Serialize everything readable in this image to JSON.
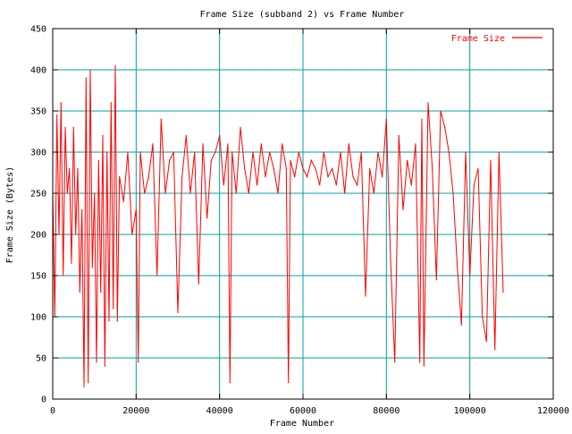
{
  "chart_data": {
    "type": "line",
    "title": "Frame Size (subband 2) vs Frame Number",
    "xlabel": "Frame Number",
    "ylabel": "Frame Size (Bytes)",
    "xlim": [
      0,
      120000
    ],
    "ylim": [
      0,
      450
    ],
    "xticks": [
      0,
      20000,
      40000,
      60000,
      80000,
      100000,
      120000
    ],
    "yticks": [
      0,
      50,
      100,
      150,
      200,
      250,
      300,
      350,
      400,
      450
    ],
    "grid": true,
    "legend_position": "top-right",
    "colors": {
      "series": "#ff0000",
      "grid": "#00a0a0",
      "axis": "#000000"
    },
    "series": [
      {
        "name": "Frame Size",
        "x": [
          0,
          500,
          1000,
          1500,
          2000,
          2500,
          3000,
          3500,
          4000,
          4500,
          5000,
          5500,
          6000,
          6500,
          7000,
          7500,
          8000,
          8500,
          9000,
          9500,
          10000,
          10500,
          11000,
          11500,
          12000,
          12500,
          13000,
          13500,
          14000,
          14500,
          15000,
          15500,
          16000,
          17000,
          18000,
          19000,
          20000,
          20500,
          21000,
          22000,
          23000,
          24000,
          25000,
          26000,
          27000,
          28000,
          29000,
          30000,
          31000,
          32000,
          33000,
          34000,
          35000,
          36000,
          37000,
          38000,
          39000,
          40000,
          41000,
          42000,
          42500,
          43000,
          44000,
          45000,
          46000,
          47000,
          48000,
          49000,
          50000,
          51000,
          52000,
          53000,
          54000,
          55000,
          56000,
          56500,
          57000,
          58000,
          59000,
          60000,
          61000,
          62000,
          63000,
          64000,
          65000,
          66000,
          67000,
          68000,
          69000,
          70000,
          71000,
          72000,
          73000,
          74000,
          75000,
          76000,
          77000,
          78000,
          79000,
          80000,
          81000,
          82000,
          83000,
          84000,
          85000,
          86000,
          87000,
          88000,
          88500,
          89000,
          90000,
          91000,
          92000,
          93000,
          94000,
          95000,
          96000,
          97000,
          98000,
          99000,
          100000,
          101000,
          102000,
          103000,
          104000,
          105000,
          106000,
          107000,
          108000
        ],
        "y": [
          250,
          100,
          345,
          200,
          360,
          150,
          330,
          250,
          280,
          165,
          330,
          200,
          280,
          130,
          230,
          15,
          390,
          20,
          400,
          160,
          250,
          45,
          290,
          130,
          320,
          40,
          300,
          95,
          360,
          110,
          405,
          95,
          270,
          240,
          300,
          200,
          230,
          45,
          300,
          250,
          270,
          310,
          150,
          340,
          250,
          290,
          300,
          105,
          270,
          320,
          250,
          300,
          140,
          310,
          220,
          290,
          300,
          320,
          260,
          310,
          20,
          300,
          250,
          330,
          280,
          250,
          300,
          260,
          310,
          270,
          300,
          280,
          250,
          310,
          280,
          20,
          290,
          270,
          300,
          280,
          270,
          290,
          280,
          260,
          300,
          270,
          280,
          260,
          300,
          250,
          310,
          270,
          260,
          300,
          125,
          280,
          250,
          300,
          270,
          340,
          170,
          45,
          320,
          230,
          290,
          260,
          310,
          45,
          340,
          40,
          360,
          280,
          145,
          350,
          330,
          300,
          250,
          160,
          90,
          300,
          150,
          260,
          280,
          100,
          70,
          290,
          60,
          300,
          130
        ]
      }
    ]
  }
}
